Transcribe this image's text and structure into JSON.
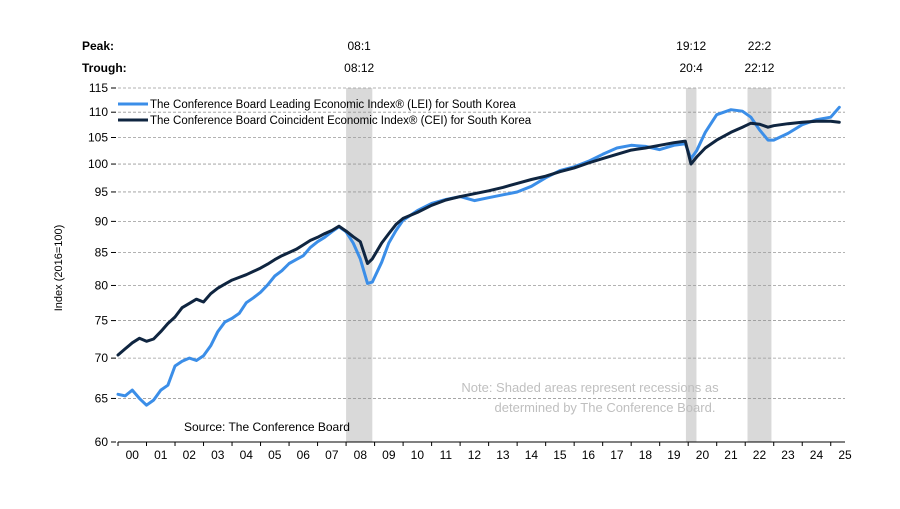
{
  "header": {
    "peak_label": "Peak:",
    "trough_label": "Trough:"
  },
  "recessions": [
    {
      "peak": "08:1",
      "trough": "08:12",
      "start": 2008.0,
      "end": 2008.92
    },
    {
      "peak": "19:12",
      "trough": "20:4",
      "start": 2019.92,
      "end": 2020.29
    },
    {
      "peak": "22:2",
      "trough": "22:12",
      "start": 2022.08,
      "end": 2022.92
    }
  ],
  "note": {
    "line1": "Note: Shaded areas represent recessions as",
    "line2": "determined by The Conference Board."
  },
  "source": "Source: The Conference Board",
  "colors": {
    "lei": "#3b8ee8",
    "cei": "#0f2540",
    "recession": "#d9d9d9",
    "grid": "#999999",
    "note": "#bfbfbf"
  },
  "chart_data": {
    "type": "line",
    "ylabel": "Index (2016=100)",
    "y_scale": "log",
    "ylim": [
      60,
      115
    ],
    "y_ticks": [
      60,
      65,
      70,
      75,
      80,
      85,
      90,
      95,
      100,
      105,
      110,
      115
    ],
    "x_range": [
      2000,
      2025.5
    ],
    "x_tick_labels": [
      "00",
      "01",
      "02",
      "03",
      "04",
      "05",
      "06",
      "07",
      "08",
      "09",
      "10",
      "11",
      "12",
      "13",
      "14",
      "15",
      "16",
      "17",
      "18",
      "19",
      "20",
      "21",
      "22",
      "23",
      "24",
      "25"
    ],
    "series": [
      {
        "name": "The Conference Board Leading Economic Index® (LEI) for South Korea",
        "x": [
          2000.0,
          2000.25,
          2000.5,
          2000.75,
          2001.0,
          2001.25,
          2001.5,
          2001.75,
          2002.0,
          2002.25,
          2002.5,
          2002.75,
          2003.0,
          2003.25,
          2003.5,
          2003.75,
          2004.0,
          2004.25,
          2004.5,
          2004.75,
          2005.0,
          2005.25,
          2005.5,
          2005.75,
          2006.0,
          2006.25,
          2006.5,
          2006.75,
          2007.0,
          2007.25,
          2007.5,
          2007.75,
          2008.0,
          2008.25,
          2008.5,
          2008.75,
          2008.92,
          2009.25,
          2009.5,
          2009.75,
          2010.0,
          2010.5,
          2011.0,
          2011.5,
          2012.0,
          2012.5,
          2013.0,
          2013.5,
          2014.0,
          2014.5,
          2015.0,
          2015.5,
          2016.0,
          2016.5,
          2017.0,
          2017.5,
          2018.0,
          2018.5,
          2019.0,
          2019.5,
          2019.9,
          2020.1,
          2020.3,
          2020.6,
          2021.0,
          2021.5,
          2021.9,
          2022.2,
          2022.5,
          2022.8,
          2023.0,
          2023.5,
          2024.0,
          2024.5,
          2025.0,
          2025.3
        ],
        "values": [
          65.5,
          65.3,
          66.0,
          65.0,
          64.2,
          64.8,
          66.0,
          66.6,
          69.0,
          69.6,
          70.0,
          69.7,
          70.3,
          71.6,
          73.5,
          74.8,
          75.3,
          76.0,
          77.5,
          78.2,
          79.0,
          80.1,
          81.4,
          82.2,
          83.3,
          83.9,
          84.5,
          85.8,
          86.7,
          87.4,
          88.3,
          89.1,
          88.3,
          86.5,
          84.0,
          80.3,
          80.5,
          83.5,
          86.5,
          88.5,
          90.2,
          91.8,
          93.0,
          93.7,
          94.2,
          93.5,
          94.0,
          94.5,
          95.0,
          96.0,
          97.5,
          98.8,
          99.5,
          100.5,
          101.8,
          103.0,
          103.5,
          103.3,
          102.7,
          103.5,
          103.8,
          101.0,
          102.5,
          106.0,
          109.5,
          110.5,
          110.2,
          109.0,
          106.5,
          104.5,
          104.5,
          105.8,
          107.5,
          108.5,
          109.0,
          111.0
        ]
      },
      {
        "name": "The Conference Board Coincident Economic Index® (CEI) for South Korea",
        "x": [
          2000.0,
          2000.25,
          2000.5,
          2000.75,
          2001.0,
          2001.25,
          2001.5,
          2001.75,
          2002.0,
          2002.25,
          2002.5,
          2002.75,
          2003.0,
          2003.25,
          2003.5,
          2003.75,
          2004.0,
          2004.25,
          2004.5,
          2004.75,
          2005.0,
          2005.25,
          2005.5,
          2005.75,
          2006.0,
          2006.25,
          2006.5,
          2006.75,
          2007.0,
          2007.25,
          2007.5,
          2007.75,
          2008.0,
          2008.25,
          2008.5,
          2008.75,
          2008.92,
          2009.25,
          2009.5,
          2009.75,
          2010.0,
          2010.5,
          2011.0,
          2011.5,
          2012.0,
          2012.5,
          2013.0,
          2013.5,
          2014.0,
          2014.5,
          2015.0,
          2015.5,
          2016.0,
          2016.5,
          2017.0,
          2017.5,
          2018.0,
          2018.5,
          2019.0,
          2019.5,
          2019.9,
          2020.1,
          2020.3,
          2020.6,
          2021.0,
          2021.5,
          2021.9,
          2022.2,
          2022.5,
          2022.8,
          2023.0,
          2023.5,
          2024.0,
          2024.5,
          2025.0,
          2025.3
        ],
        "values": [
          70.4,
          71.2,
          72.0,
          72.6,
          72.2,
          72.5,
          73.5,
          74.6,
          75.5,
          76.8,
          77.4,
          78.0,
          77.6,
          78.8,
          79.6,
          80.2,
          80.8,
          81.2,
          81.6,
          82.1,
          82.6,
          83.2,
          83.9,
          84.5,
          85.0,
          85.5,
          86.2,
          86.9,
          87.4,
          88.0,
          88.5,
          89.2,
          88.4,
          87.5,
          86.7,
          83.3,
          84.0,
          86.5,
          88.0,
          89.5,
          90.5,
          91.5,
          92.7,
          93.6,
          94.2,
          94.7,
          95.2,
          95.8,
          96.5,
          97.2,
          97.8,
          98.6,
          99.3,
          100.2,
          101.0,
          101.8,
          102.6,
          103.0,
          103.5,
          104.0,
          104.3,
          100.0,
          101.3,
          103.0,
          104.5,
          106.0,
          107.0,
          107.8,
          107.6,
          107.0,
          107.3,
          107.7,
          108.0,
          108.2,
          108.2,
          108.0
        ]
      }
    ],
    "legend_position": "top-left"
  }
}
